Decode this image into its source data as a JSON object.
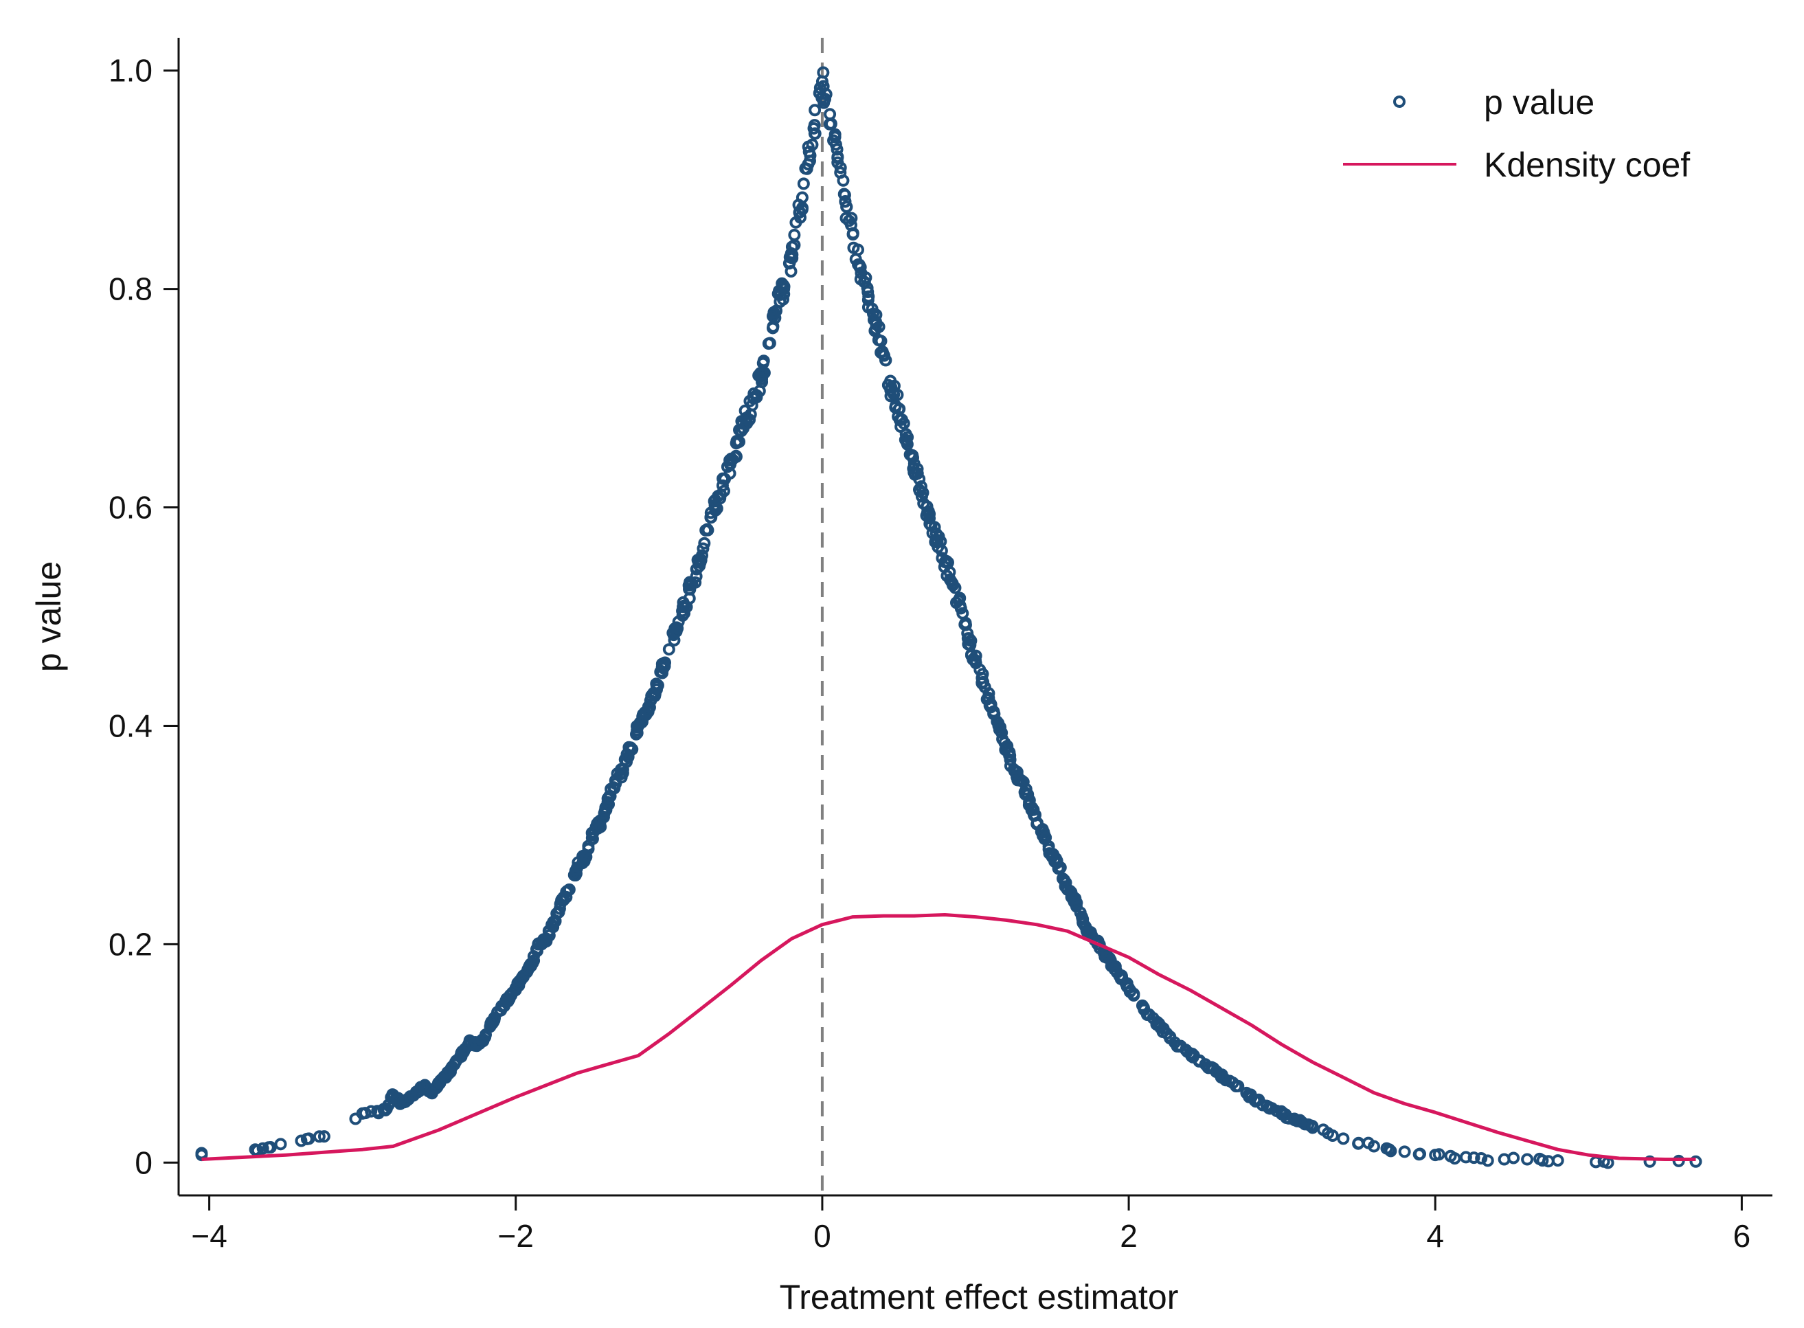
{
  "chart_data": {
    "type": "scatter",
    "title": "",
    "xlabel": "Treatment effect estimator",
    "ylabel": "p value",
    "xlim": [
      -4.2,
      6.2
    ],
    "ylim": [
      -0.03,
      1.03
    ],
    "xticks": [
      -4,
      -2,
      0,
      2,
      4,
      6
    ],
    "xtick_labels": [
      "−4",
      "−2",
      "0",
      "2",
      "4",
      "6"
    ],
    "yticks": [
      0,
      0.2,
      0.4,
      0.6,
      0.8,
      1.0
    ],
    "ytick_labels": [
      "0",
      "0.2",
      "0.4",
      "0.6",
      "0.8",
      "1.0"
    ],
    "grid": false,
    "legend_position": "top-right",
    "reference_line": {
      "x": 0,
      "style": "dashed",
      "color": "#808080"
    },
    "series": [
      {
        "name": "p value",
        "type": "scatter",
        "marker": "hollow-circle",
        "color": "#1f4e79",
        "envelope": "p = exp(-0.96*|x|^1.1) approx; dense cloud of ~1000 points, symmetric peak at x=0",
        "points": [
          [
            -4.05,
            0.007
          ],
          [
            -3.7,
            0.012
          ],
          [
            -3.65,
            0.013
          ],
          [
            -3.6,
            0.014
          ],
          [
            -3.4,
            0.02
          ],
          [
            -3.35,
            0.022
          ],
          [
            -3.25,
            0.024
          ],
          [
            -3.0,
            0.045
          ],
          [
            -2.85,
            0.048
          ],
          [
            -2.8,
            0.062
          ],
          [
            -2.75,
            0.055
          ],
          [
            -2.7,
            0.058
          ],
          [
            -2.6,
            0.07
          ],
          [
            -2.55,
            0.065
          ],
          [
            -2.5,
            0.072
          ],
          [
            -2.45,
            0.08
          ],
          [
            -2.4,
            0.09
          ],
          [
            -2.35,
            0.1
          ],
          [
            -2.3,
            0.11
          ],
          [
            -2.25,
            0.108
          ],
          [
            -2.2,
            0.115
          ],
          [
            -2.15,
            0.13
          ],
          [
            -2.1,
            0.14
          ],
          [
            -2.05,
            0.15
          ],
          [
            -2.0,
            0.16
          ],
          [
            -1.95,
            0.17
          ],
          [
            -1.9,
            0.18
          ],
          [
            -1.85,
            0.2
          ],
          [
            -1.8,
            0.205
          ],
          [
            -1.75,
            0.22
          ],
          [
            -1.7,
            0.24
          ],
          [
            -1.65,
            0.25
          ],
          [
            -1.6,
            0.27
          ],
          [
            -1.55,
            0.28
          ],
          [
            -1.5,
            0.3
          ],
          [
            -1.45,
            0.31
          ],
          [
            -1.4,
            0.33
          ],
          [
            -1.35,
            0.35
          ],
          [
            -1.3,
            0.36
          ],
          [
            -1.25,
            0.38
          ],
          [
            -1.2,
            0.4
          ],
          [
            -1.15,
            0.41
          ],
          [
            -1.1,
            0.43
          ],
          [
            -1.05,
            0.45
          ],
          [
            -1.0,
            0.47
          ],
          [
            -0.95,
            0.49
          ],
          [
            -0.9,
            0.51
          ],
          [
            -0.85,
            0.53
          ],
          [
            -0.8,
            0.55
          ],
          [
            -0.75,
            0.58
          ],
          [
            -0.7,
            0.6
          ],
          [
            -0.65,
            0.62
          ],
          [
            -0.6,
            0.64
          ],
          [
            -0.55,
            0.66
          ],
          [
            -0.5,
            0.68
          ],
          [
            -0.45,
            0.7
          ],
          [
            -0.4,
            0.72
          ],
          [
            -0.35,
            0.75
          ],
          [
            -0.3,
            0.78
          ],
          [
            -0.25,
            0.8
          ],
          [
            -0.2,
            0.83
          ],
          [
            -0.15,
            0.87
          ],
          [
            -0.1,
            0.91
          ],
          [
            -0.05,
            0.95
          ],
          [
            0.0,
            0.99
          ],
          [
            0.05,
            0.96
          ],
          [
            0.1,
            0.92
          ],
          [
            0.15,
            0.88
          ],
          [
            0.2,
            0.85
          ],
          [
            0.25,
            0.82
          ],
          [
            0.3,
            0.79
          ],
          [
            0.35,
            0.77
          ],
          [
            0.4,
            0.74
          ],
          [
            0.45,
            0.71
          ],
          [
            0.5,
            0.69
          ],
          [
            0.55,
            0.66
          ],
          [
            0.6,
            0.64
          ],
          [
            0.65,
            0.61
          ],
          [
            0.7,
            0.59
          ],
          [
            0.75,
            0.57
          ],
          [
            0.8,
            0.55
          ],
          [
            0.85,
            0.53
          ],
          [
            0.9,
            0.51
          ],
          [
            0.95,
            0.48
          ],
          [
            1.0,
            0.46
          ],
          [
            1.05,
            0.44
          ],
          [
            1.1,
            0.42
          ],
          [
            1.15,
            0.4
          ],
          [
            1.2,
            0.38
          ],
          [
            1.25,
            0.36
          ],
          [
            1.3,
            0.35
          ],
          [
            1.35,
            0.33
          ],
          [
            1.4,
            0.31
          ],
          [
            1.45,
            0.3
          ],
          [
            1.5,
            0.28
          ],
          [
            1.55,
            0.27
          ],
          [
            1.6,
            0.25
          ],
          [
            1.65,
            0.24
          ],
          [
            1.7,
            0.22
          ],
          [
            1.75,
            0.21
          ],
          [
            1.8,
            0.2
          ],
          [
            1.85,
            0.19
          ],
          [
            1.9,
            0.18
          ],
          [
            1.95,
            0.17
          ],
          [
            2.0,
            0.16
          ],
          [
            2.1,
            0.14
          ],
          [
            2.2,
            0.125
          ],
          [
            2.3,
            0.11
          ],
          [
            2.4,
            0.1
          ],
          [
            2.5,
            0.09
          ],
          [
            2.6,
            0.08
          ],
          [
            2.7,
            0.07
          ],
          [
            2.8,
            0.06
          ],
          [
            2.9,
            0.052
          ],
          [
            3.0,
            0.045
          ],
          [
            3.1,
            0.038
          ],
          [
            3.2,
            0.032
          ],
          [
            3.3,
            0.027
          ],
          [
            3.4,
            0.022
          ],
          [
            3.5,
            0.018
          ],
          [
            3.6,
            0.015
          ],
          [
            3.7,
            0.012
          ],
          [
            3.8,
            0.01
          ],
          [
            3.9,
            0.008
          ],
          [
            4.0,
            0.007
          ],
          [
            4.1,
            0.006
          ],
          [
            4.2,
            0.005
          ],
          [
            4.3,
            0.004
          ],
          [
            4.45,
            0.003
          ],
          [
            4.6,
            0.003
          ],
          [
            4.7,
            0.002
          ],
          [
            4.8,
            0.002
          ],
          [
            5.1,
            0.001
          ],
          [
            5.4,
            0.001
          ],
          [
            5.7,
            0.001
          ]
        ]
      },
      {
        "name": "Kdensity coef",
        "type": "line",
        "color": "#d6175d",
        "x": [
          -4.05,
          -3.5,
          -3.0,
          -2.8,
          -2.5,
          -2.0,
          -1.6,
          -1.4,
          -1.2,
          -1.0,
          -0.8,
          -0.6,
          -0.4,
          -0.2,
          0.0,
          0.2,
          0.4,
          0.6,
          0.8,
          1.0,
          1.2,
          1.4,
          1.6,
          1.8,
          2.0,
          2.2,
          2.4,
          2.6,
          2.8,
          3.0,
          3.2,
          3.4,
          3.6,
          3.8,
          4.0,
          4.2,
          4.4,
          4.6,
          4.8,
          5.0,
          5.2,
          5.5,
          5.7
        ],
        "values": [
          0.003,
          0.007,
          0.012,
          0.015,
          0.03,
          0.06,
          0.082,
          0.09,
          0.098,
          0.118,
          0.14,
          0.162,
          0.185,
          0.205,
          0.218,
          0.225,
          0.226,
          0.226,
          0.227,
          0.225,
          0.222,
          0.218,
          0.212,
          0.2,
          0.188,
          0.172,
          0.158,
          0.142,
          0.126,
          0.108,
          0.092,
          0.078,
          0.064,
          0.054,
          0.046,
          0.037,
          0.028,
          0.02,
          0.012,
          0.007,
          0.004,
          0.003,
          0.003
        ]
      }
    ]
  }
}
